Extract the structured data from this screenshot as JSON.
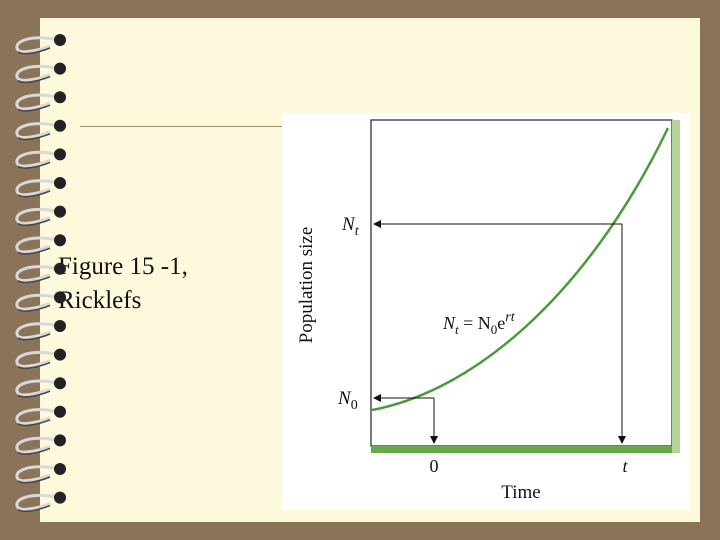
{
  "caption": {
    "line1": "Figure 15 -1,",
    "line2": "Ricklefs"
  },
  "figure": {
    "y_axis_label": "Population size",
    "x_axis_label": "Time",
    "nt_label": {
      "symbol": "N",
      "subscript": "t"
    },
    "n0_label": {
      "symbol": "N",
      "subscript": "0"
    },
    "x_tick_zero": "0",
    "x_tick_t": "t",
    "equation": {
      "lhs": "N",
      "lhs_sub": "t",
      "mid": " = N",
      "mid_sub": "0",
      "base": "e",
      "exponent": "rt"
    }
  }
}
